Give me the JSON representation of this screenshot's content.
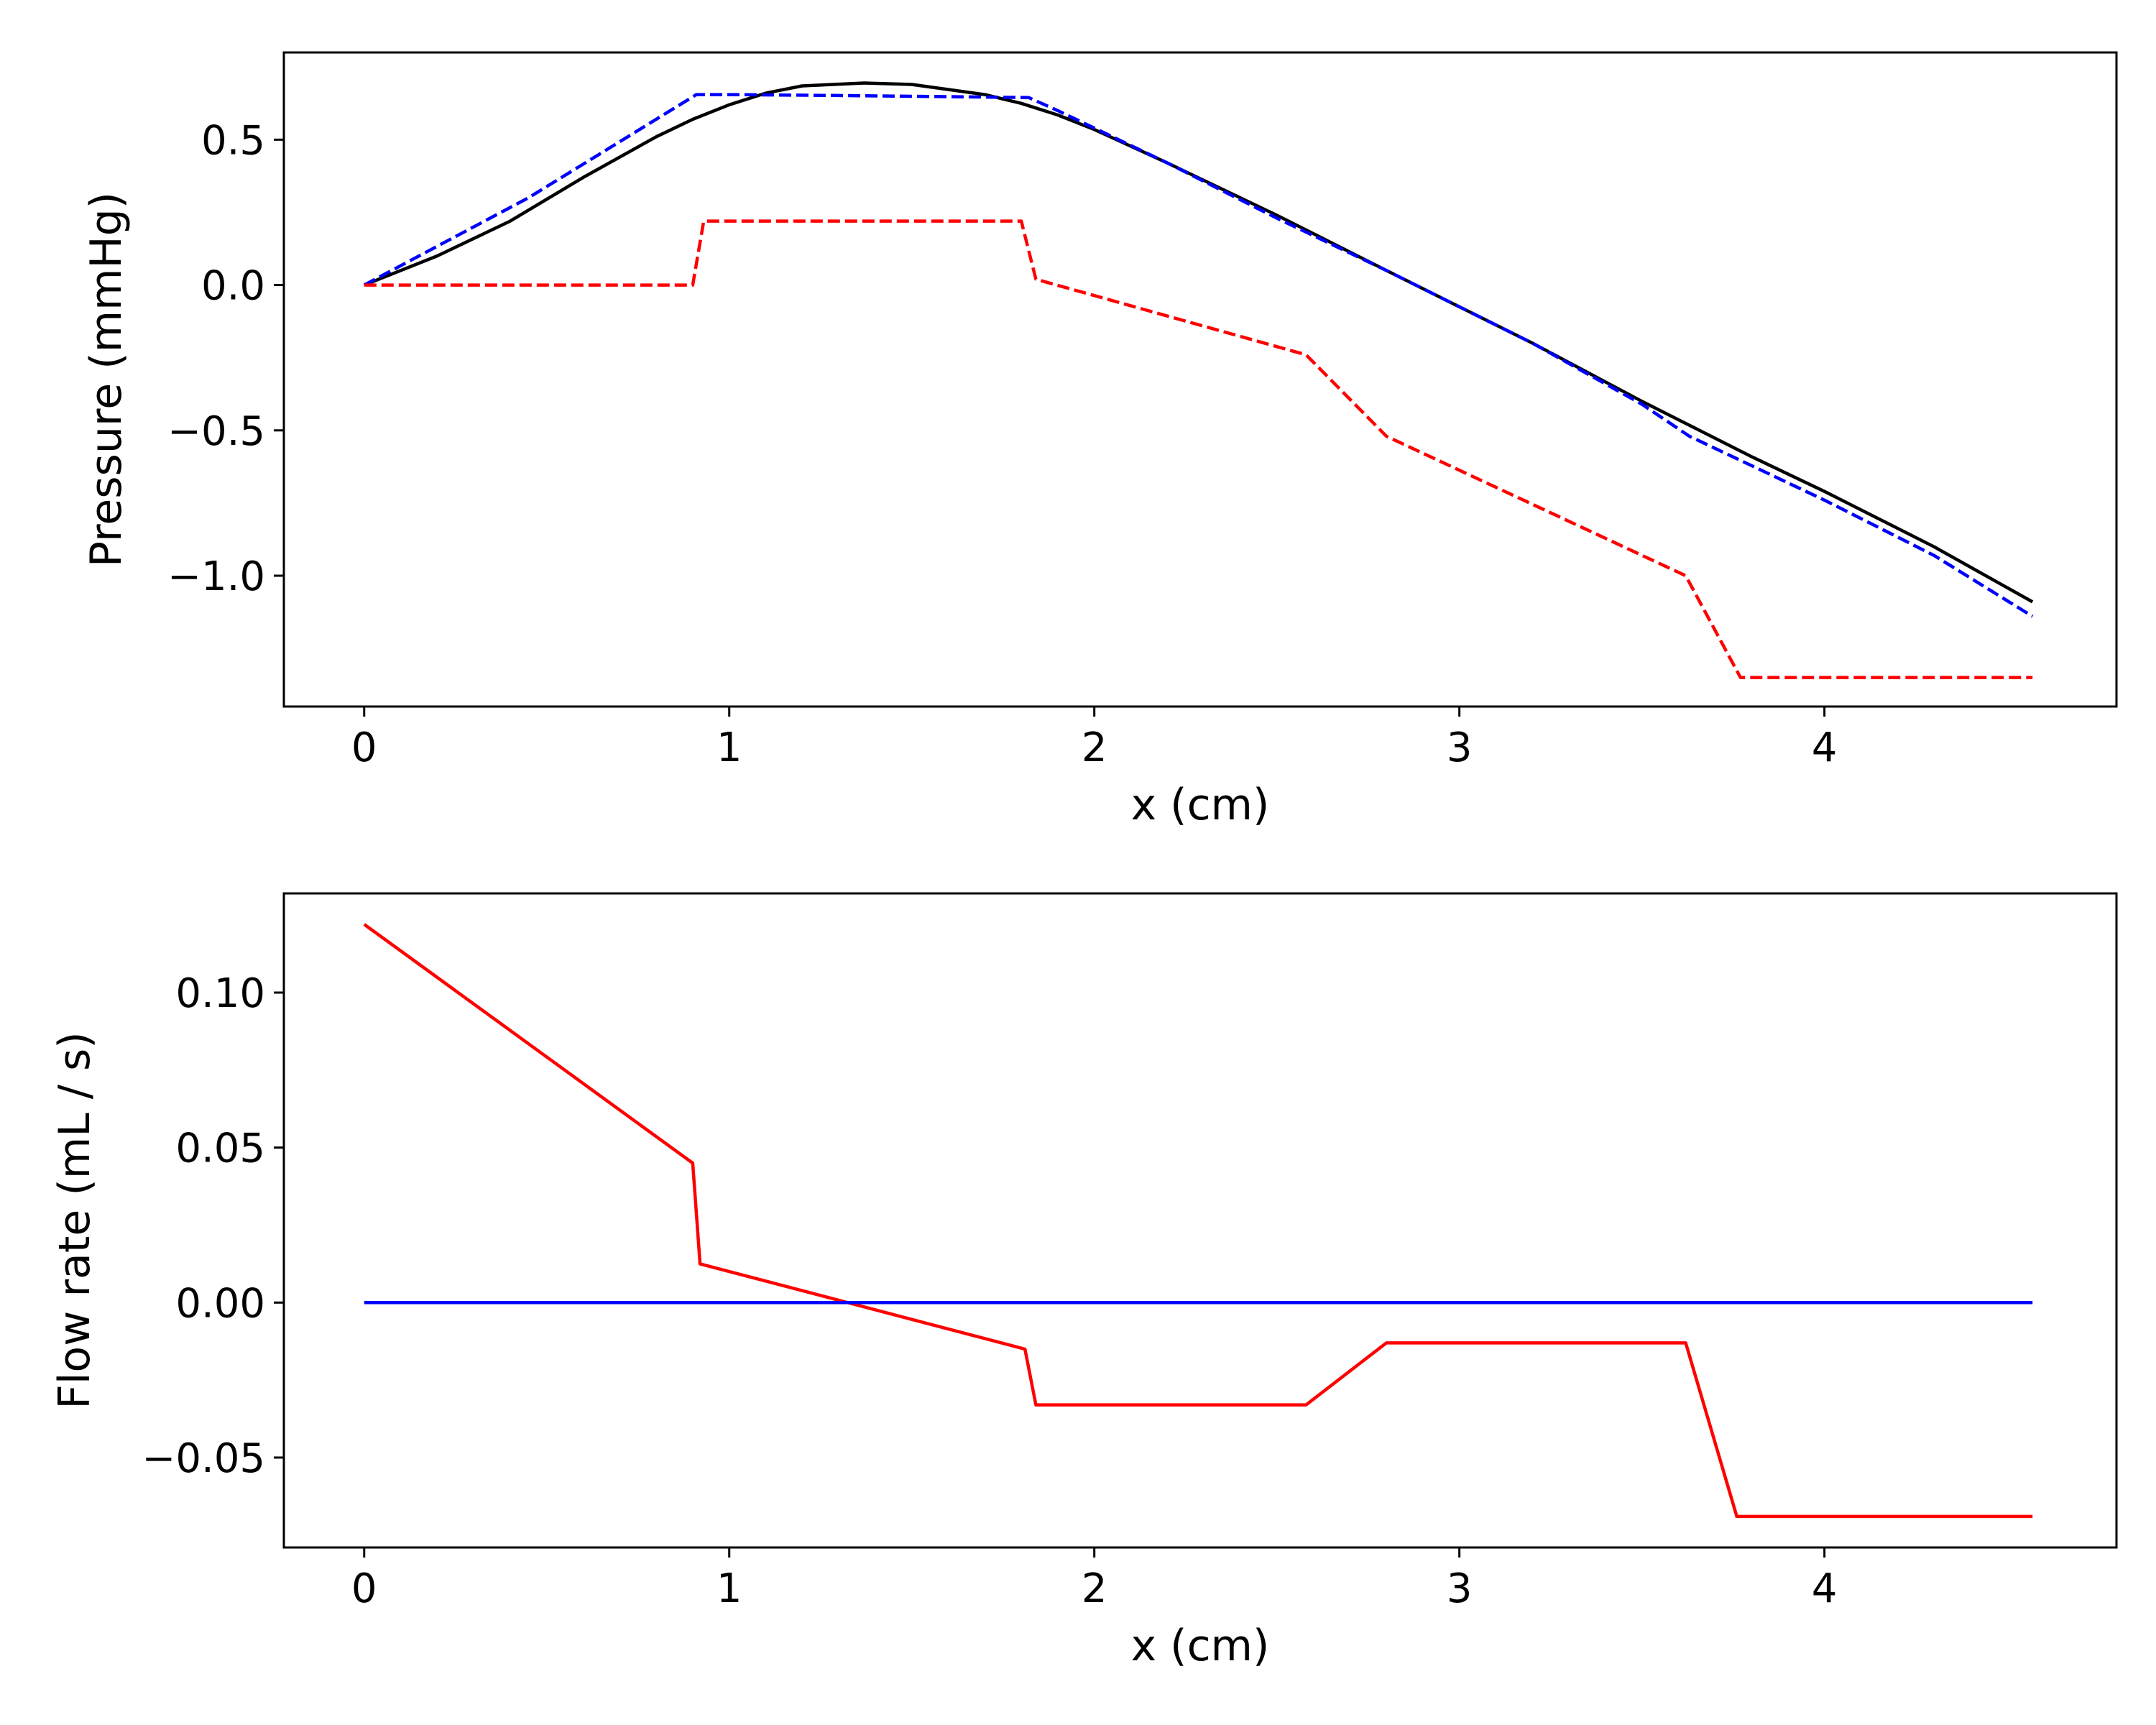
{
  "chart_data": [
    {
      "type": "line",
      "xlabel": "x (cm)",
      "ylabel": "Pressure (mmHg)",
      "xlim": [
        -0.22,
        4.8
      ],
      "ylim": [
        -1.45,
        0.8
      ],
      "xticks": [
        0,
        1,
        2,
        3,
        4
      ],
      "xtick_labels": [
        "0",
        "1",
        "2",
        "3",
        "4"
      ],
      "yticks": [
        0.5,
        0.0,
        -0.5,
        -1.0
      ],
      "ytick_labels": [
        "0.5",
        "0.0",
        "−0.5",
        "−1.0"
      ],
      "grid": false,
      "series": [
        {
          "color": "#000000",
          "style": "solid",
          "points": [
            [
              0,
              0
            ],
            [
              0.2,
              0.1
            ],
            [
              0.4,
              0.22
            ],
            [
              0.6,
              0.37
            ],
            [
              0.8,
              0.51
            ],
            [
              0.9,
              0.57
            ],
            [
              1.0,
              0.62
            ],
            [
              1.1,
              0.66
            ],
            [
              1.2,
              0.685
            ],
            [
              1.37,
              0.695
            ],
            [
              1.5,
              0.69
            ],
            [
              1.7,
              0.655
            ],
            [
              1.8,
              0.625
            ],
            [
              1.9,
              0.585
            ],
            [
              2.0,
              0.535
            ],
            [
              2.2,
              0.42
            ],
            [
              2.5,
              0.24
            ],
            [
              2.8,
              0.05
            ],
            [
              3.0,
              -0.075
            ],
            [
              3.2,
              -0.2
            ],
            [
              3.5,
              -0.4
            ],
            [
              3.8,
              -0.59
            ],
            [
              4.0,
              -0.71
            ],
            [
              4.3,
              -0.9
            ],
            [
              4.57,
              -1.09
            ]
          ]
        },
        {
          "color": "#0000ff",
          "style": "dashed",
          "points": [
            [
              0,
              0
            ],
            [
              0.45,
              0.3
            ],
            [
              0.91,
              0.655
            ],
            [
              1.0,
              0.655
            ],
            [
              1.3,
              0.652
            ],
            [
              1.6,
              0.648
            ],
            [
              1.82,
              0.645
            ],
            [
              1.9,
              0.6
            ],
            [
              2.0,
              0.54
            ],
            [
              2.2,
              0.42
            ],
            [
              2.5,
              0.23
            ],
            [
              2.8,
              0.05
            ],
            [
              3.0,
              -0.075
            ],
            [
              3.2,
              -0.2
            ],
            [
              3.5,
              -0.41
            ],
            [
              3.63,
              -0.52
            ],
            [
              4.0,
              -0.74
            ],
            [
              4.3,
              -0.93
            ],
            [
              4.57,
              -1.14
            ]
          ]
        },
        {
          "color": "#ff0000",
          "style": "dashed",
          "points": [
            [
              0,
              0
            ],
            [
              0.9,
              0
            ],
            [
              0.93,
              0.22
            ],
            [
              1.8,
              0.22
            ],
            [
              1.84,
              0.02
            ],
            [
              2.58,
              -0.24
            ],
            [
              2.8,
              -0.52
            ],
            [
              3.62,
              -1.0
            ],
            [
              3.77,
              -1.35
            ],
            [
              4.57,
              -1.35
            ]
          ]
        }
      ]
    },
    {
      "type": "line",
      "xlabel": "x (cm)",
      "ylabel": "Flow rate (mL / s)",
      "xlim": [
        -0.22,
        4.8
      ],
      "ylim": [
        -0.079,
        0.132
      ],
      "xticks": [
        0,
        1,
        2,
        3,
        4
      ],
      "xtick_labels": [
        "0",
        "1",
        "2",
        "3",
        "4"
      ],
      "yticks": [
        0.1,
        0.05,
        0.0,
        -0.05
      ],
      "ytick_labels": [
        "0.10",
        "0.05",
        "0.00",
        "−0.05"
      ],
      "grid": false,
      "series": [
        {
          "color": "#ff0000",
          "style": "solid",
          "points": [
            [
              0,
              0.122
            ],
            [
              0.9,
              0.045
            ],
            [
              0.92,
              0.0125
            ],
            [
              1.81,
              -0.015
            ],
            [
              1.84,
              -0.033
            ],
            [
              2.58,
              -0.033
            ],
            [
              2.8,
              -0.013
            ],
            [
              3.62,
              -0.013
            ],
            [
              3.76,
              -0.069
            ],
            [
              4.57,
              -0.069
            ]
          ]
        },
        {
          "color": "#0000ff",
          "style": "solid",
          "points": [
            [
              0,
              0
            ],
            [
              4.57,
              0
            ]
          ]
        }
      ]
    }
  ]
}
